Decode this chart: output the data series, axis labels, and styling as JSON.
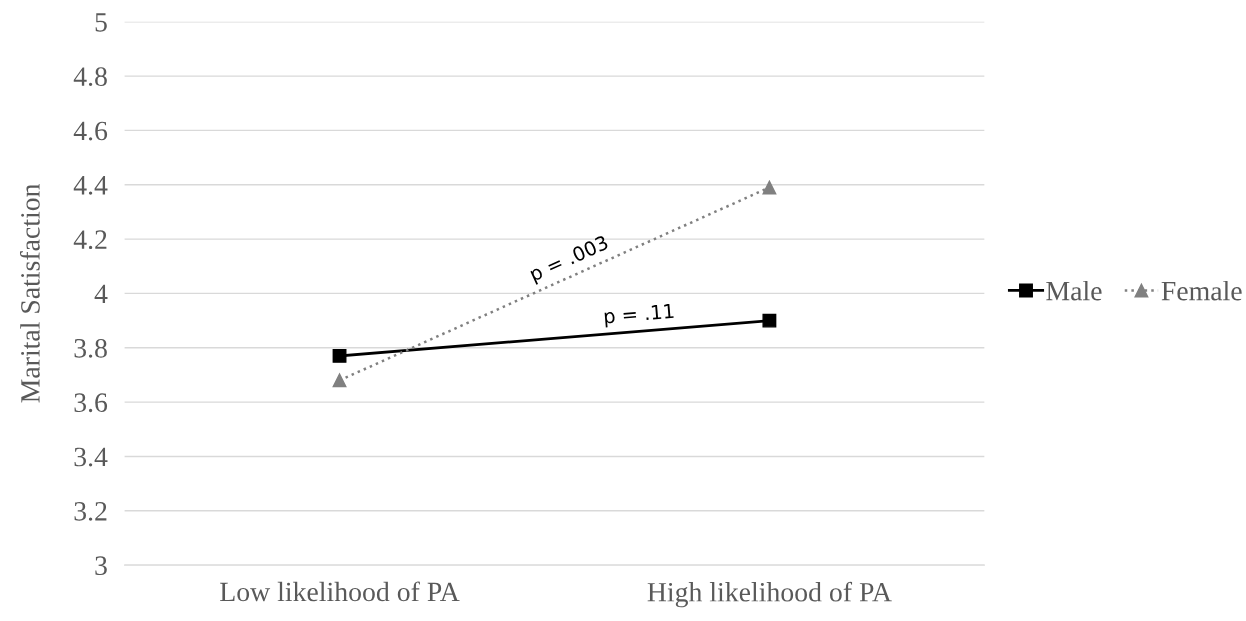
{
  "chart_data": {
    "type": "line",
    "ylabel": "Marital Satisfaction",
    "categories": [
      "Low likelihood of PA",
      "High likelihood of PA"
    ],
    "series": [
      {
        "name": "Male",
        "color": "#000000",
        "values": [
          3.77,
          3.9
        ],
        "marker": "square",
        "line_style": "solid"
      },
      {
        "name": "Female",
        "color": "#808080",
        "values": [
          3.68,
          4.39
        ],
        "marker": "triangle",
        "line_style": "dotted"
      }
    ],
    "ylim": [
      3,
      5
    ],
    "yticks": [
      3,
      3.2,
      3.4,
      3.6,
      3.8,
      4,
      4.2,
      4.4,
      4.6,
      4.8,
      5
    ],
    "grid": "y",
    "legend": "right",
    "annotations": [
      "p = .003",
      "p = .11"
    ]
  }
}
